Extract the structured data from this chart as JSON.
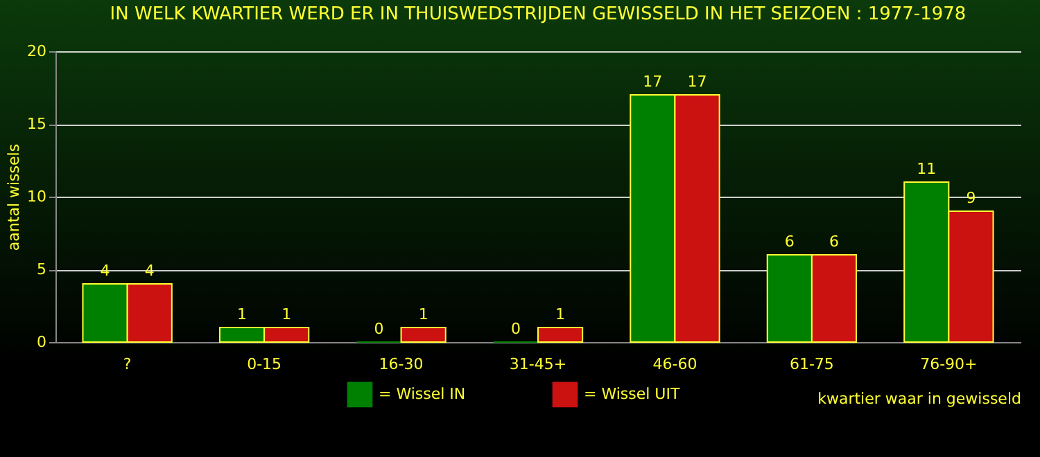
{
  "chart_data": {
    "type": "bar",
    "title": "IN WELK KWARTIER WERD ER IN THUISWEDSTRIJDEN GEWISSELD IN HET SEIZOEN : 1977-1978",
    "xlabel": "kwartier waar in gewisseld",
    "ylabel": "aantal wissels",
    "categories": [
      "?",
      "0-15",
      "16-30",
      "31-45+",
      "46-60",
      "61-75",
      "76-90+"
    ],
    "series": [
      {
        "name": "= Wissel IN",
        "color": "#008000",
        "values": [
          4,
          1,
          0,
          0,
          17,
          6,
          11
        ]
      },
      {
        "name": "= Wissel UIT",
        "color": "#cc1111",
        "values": [
          4,
          1,
          1,
          1,
          17,
          6,
          9
        ]
      }
    ],
    "ylim": [
      0,
      20
    ],
    "yticks": [
      0,
      5,
      10,
      15,
      20
    ],
    "grid": "y",
    "legend": "bottom",
    "data_labels": true
  }
}
